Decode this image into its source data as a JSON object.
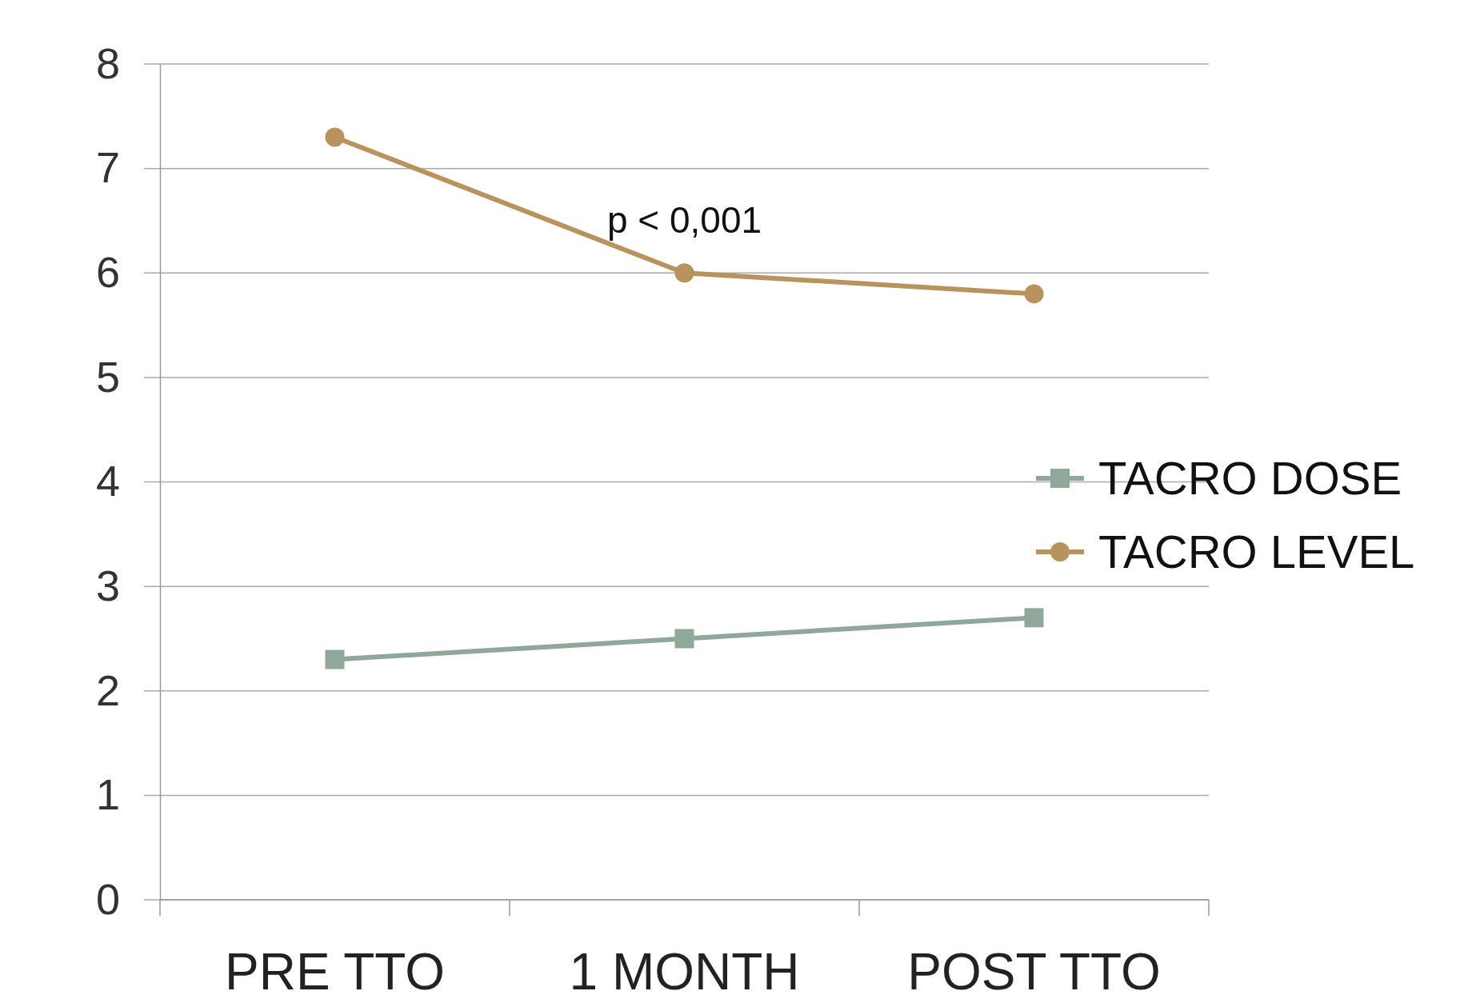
{
  "chart_data": {
    "type": "line",
    "categories": [
      "PRE TTO",
      "1 MONTH",
      "POST TTO"
    ],
    "series": [
      {
        "name": "TACRO DOSE",
        "color": "#8fa89a",
        "values": [
          2.3,
          2.5,
          2.7
        ],
        "marker": "square"
      },
      {
        "name": "TACRO LEVEL",
        "color": "#b8935e",
        "values": [
          7.3,
          6.0,
          5.8
        ],
        "marker": "circle"
      }
    ],
    "ylim": [
      0,
      8
    ],
    "yticks": [
      0,
      1,
      2,
      3,
      4,
      5,
      6,
      7,
      8
    ],
    "grid": "y",
    "legend": "right",
    "line_style": "solid",
    "annotations": [
      "p < 0,001"
    ]
  }
}
